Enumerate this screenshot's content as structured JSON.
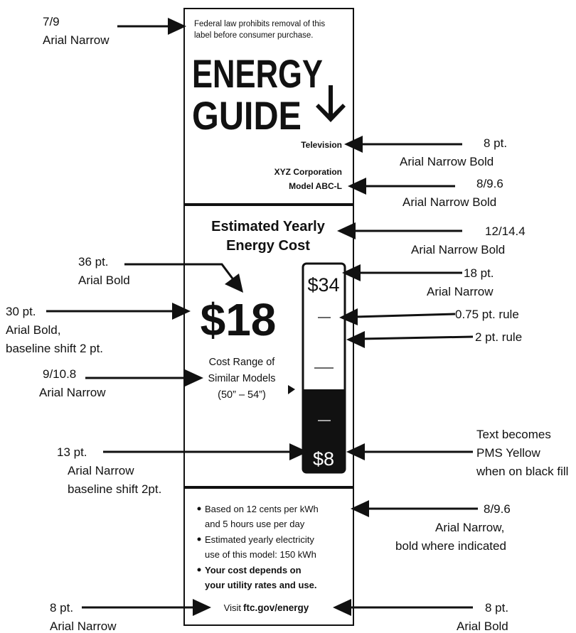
{
  "label": {
    "notice": [
      "Federal law prohibits removal of this",
      "label before consumer purchase."
    ],
    "title": [
      "ENERGY",
      "GUIDE"
    ],
    "product": "Television",
    "maker": [
      "XYZ Corporation",
      "Model ABC-L"
    ],
    "cost_heading": [
      "Estimated Yearly",
      "Energy Cost"
    ],
    "cost": "$18",
    "range_caption": [
      "Cost Range of",
      "Similar Models",
      "(50” – 54”)"
    ],
    "range_high": "$34",
    "range_low": "$8",
    "bullets": [
      [
        "Based on 12 cents per kWh",
        "and 5 hours use per day"
      ],
      [
        "Estimated yearly electricity",
        "use of this model: 150 kWh"
      ],
      [
        "Your cost depends on",
        "your utility rates and use."
      ]
    ],
    "visit": "Visit",
    "url": "ftc.gov/energy"
  },
  "annotations": [
    [
      "7/9",
      "Arial Narrow"
    ],
    [
      "8 pt.",
      "Arial Narrow Bold"
    ],
    [
      "8/9.6",
      "Arial Narrow Bold"
    ],
    [
      "12/14.4",
      "Arial Narrow Bold"
    ],
    [
      "36 pt.",
      "Arial Bold"
    ],
    [
      "18 pt.",
      "Arial Narrow"
    ],
    [
      "30 pt.",
      "Arial Bold,",
      "baseline shift 2 pt."
    ],
    [
      "0.75 pt. rule"
    ],
    [
      "2 pt. rule"
    ],
    [
      "9/10.8",
      "Arial Narrow"
    ],
    [
      "13 pt.",
      "Arial Narrow",
      "baseline shift 2pt."
    ],
    [
      "Text becomes",
      "PMS Yellow",
      "when on black fill"
    ],
    [
      "8/9.6",
      "Arial Narrow,",
      "bold where indicated"
    ],
    [
      "8 pt.",
      "Arial Narrow"
    ],
    [
      "8 pt.",
      "Arial Bold"
    ]
  ]
}
